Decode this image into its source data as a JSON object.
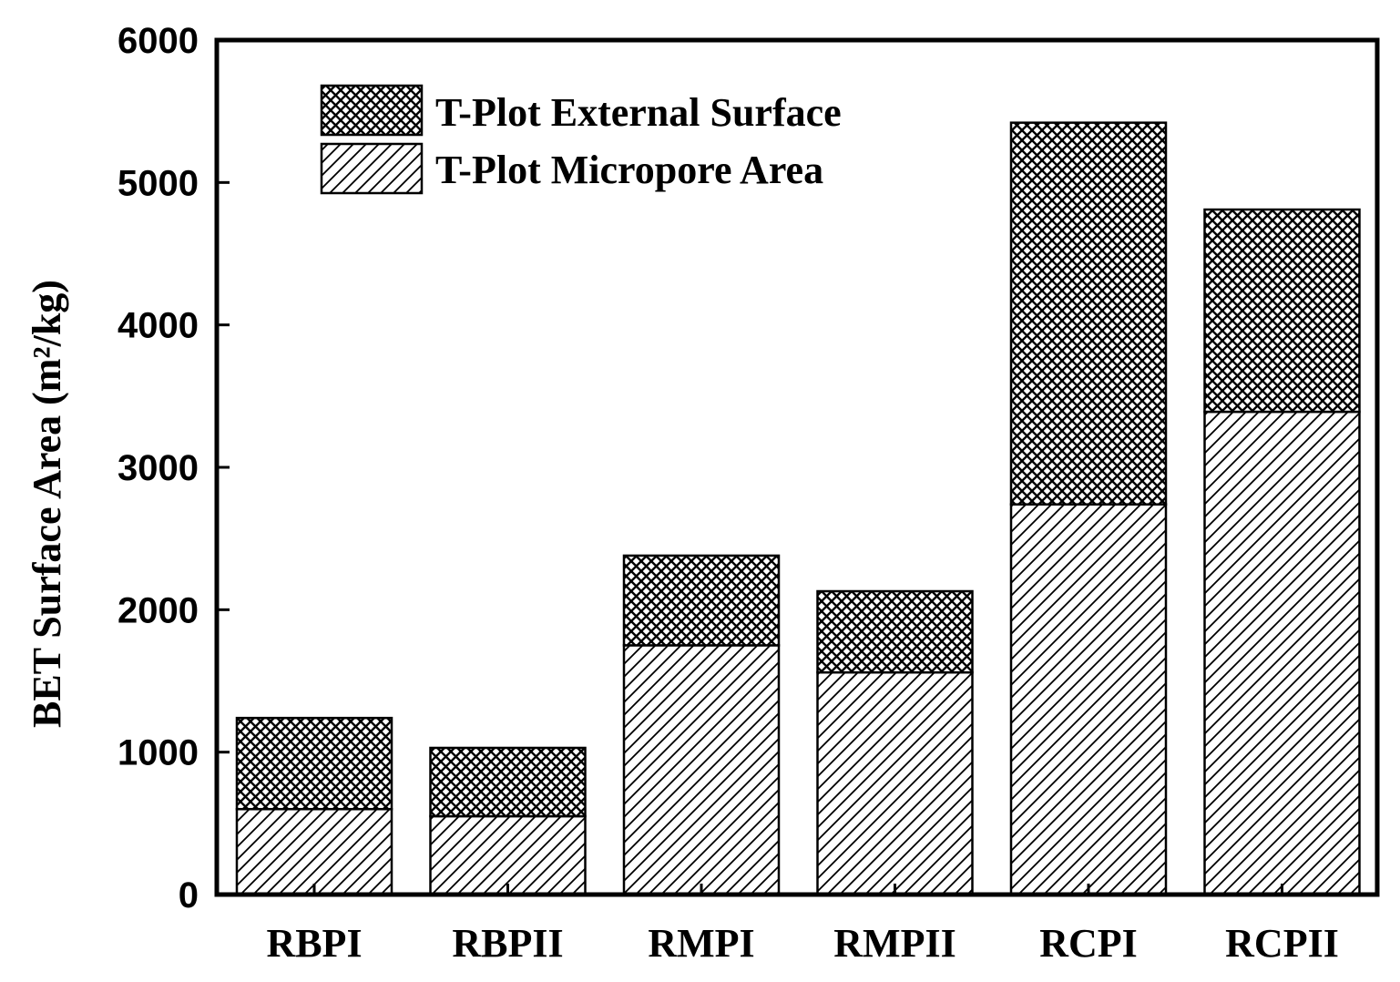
{
  "chart_data": {
    "type": "bar",
    "stacked": true,
    "categories": [
      "RBPI",
      "RBPII",
      "RMPI",
      "RMPII",
      "RCPI",
      "RCPII"
    ],
    "series": [
      {
        "name": "T-Plot Micropore Area",
        "pattern": "diagonal-hatch",
        "values": [
          600,
          550,
          1750,
          1560,
          2740,
          3390
        ]
      },
      {
        "name": "T-Plot External Surface",
        "pattern": "cross-hatch",
        "values": [
          640,
          480,
          630,
          570,
          2680,
          1420
        ]
      }
    ],
    "ylabel": "BET Surface Area (m²/kg)",
    "xlabel": "",
    "ylim": [
      0,
      6000
    ],
    "yticks": [
      0,
      1000,
      2000,
      3000,
      4000,
      5000,
      6000
    ],
    "grid": false,
    "legend_position": "top-left"
  }
}
